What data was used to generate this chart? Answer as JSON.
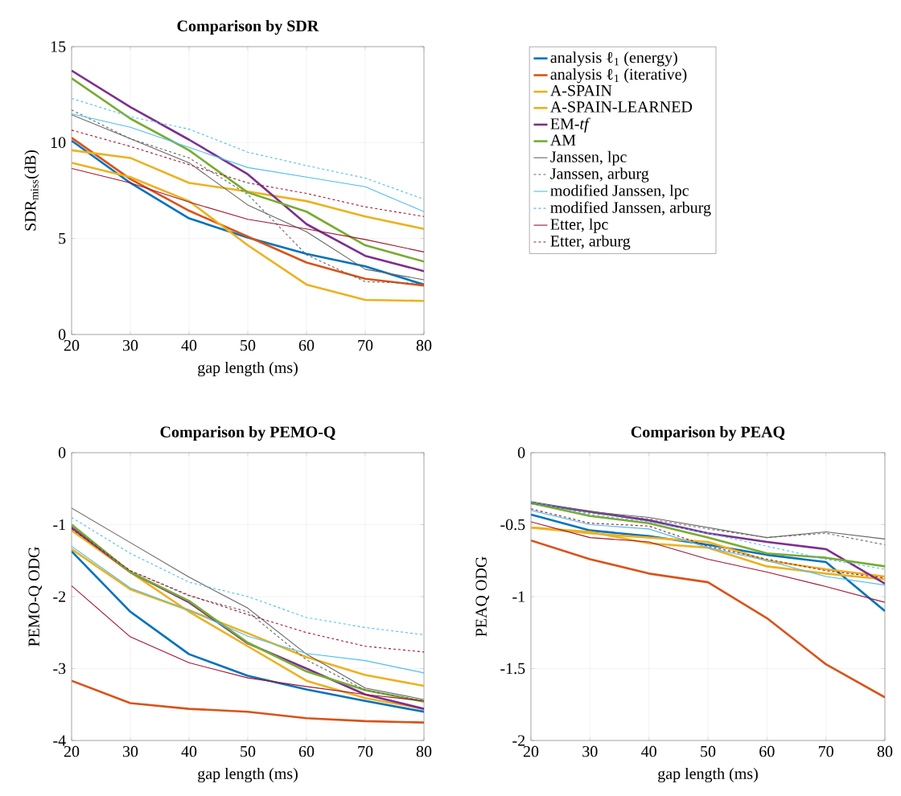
{
  "chart_data": [
    {
      "type": "line",
      "title": "**Comparison by SDR**",
      "xlabel": "gap length (ms)",
      "ylabel": "SDR$_{miss}$(dB)",
      "x": [
        20,
        30,
        40,
        50,
        60,
        70,
        80
      ],
      "xlim": [
        20,
        80
      ],
      "ylim": [
        0,
        15
      ],
      "xticks": [
        20,
        30,
        40,
        50,
        60,
        70,
        80
      ],
      "yticks": [
        0,
        5,
        10,
        15
      ],
      "grid": true,
      "legend": "right",
      "marker": "none",
      "series": [
        {
          "name": "analysis ℓ$_{1}$ (energy)",
          "color": "#0072bd",
          "line_style": "solid",
          "values": [
            10.1,
            7.9,
            6.05,
            5.05,
            4.2,
            3.55,
            2.6
          ]
        },
        {
          "name": "analysis ℓ$_{1}$ (iterative)",
          "color": "#d95319",
          "line_style": "solid",
          "values": [
            10.25,
            8.1,
            6.45,
            5.1,
            3.75,
            2.9,
            2.55
          ]
        },
        {
          "name": "A-SPAIN",
          "color": "#edb120",
          "line_style": "solid",
          "values": [
            8.95,
            8.2,
            6.95,
            4.65,
            2.6,
            1.8,
            1.75
          ]
        },
        {
          "name": "A-SPAIN-LEARNED",
          "color": "#edb120",
          "line_style": "solid",
          "values": [
            9.6,
            9.2,
            7.9,
            7.45,
            6.95,
            6.15,
            5.5
          ]
        },
        {
          "name": "EM-*tf*",
          "color": "#7e2f8e",
          "line_style": "solid",
          "values": [
            13.75,
            11.85,
            10.15,
            8.35,
            5.75,
            4.1,
            3.3
          ]
        },
        {
          "name": "AM",
          "color": "#77ac30",
          "line_style": "solid",
          "values": [
            13.35,
            11.25,
            9.6,
            7.4,
            6.4,
            4.65,
            3.8
          ]
        },
        {
          "name": "Janssen, lpc",
          "color": "#666666",
          "line_style": "solid",
          "values": [
            11.45,
            10.2,
            8.95,
            6.75,
            5.35,
            3.4,
            2.85
          ]
        },
        {
          "name": "Janssen, arburg",
          "color": "#666666",
          "line_style": "dashed",
          "values": [
            11.7,
            10.2,
            9.2,
            7.3,
            4.15,
            2.75,
            2.65
          ]
        },
        {
          "name": "modified Janssen, lpc",
          "color": "#4dbeee",
          "line_style": "solid",
          "values": [
            11.5,
            10.8,
            9.75,
            8.7,
            8.2,
            7.7,
            6.4
          ]
        },
        {
          "name": "modified Janssen, arburg",
          "color": "#4dbeee",
          "line_style": "dashed",
          "values": [
            12.3,
            11.35,
            10.7,
            9.5,
            8.8,
            8.15,
            7.05
          ]
        },
        {
          "name": "Etter, lpc",
          "color": "#a2142f",
          "line_style": "solid",
          "values": [
            8.65,
            7.9,
            6.9,
            6.0,
            5.5,
            4.95,
            4.3
          ]
        },
        {
          "name": "Etter, arburg",
          "color": "#a2142f",
          "line_style": "dashed",
          "values": [
            10.65,
            9.8,
            8.85,
            7.9,
            7.35,
            6.65,
            6.15
          ]
        }
      ]
    },
    {
      "type": "line",
      "title": "**Comparison by PEMO-Q**",
      "xlabel": "gap length (ms)",
      "ylabel": "PEMO-Q ODG",
      "x": [
        20,
        30,
        40,
        50,
        60,
        70,
        80
      ],
      "xlim": [
        20,
        80
      ],
      "ylim": [
        -4,
        0
      ],
      "xticks": [
        20,
        30,
        40,
        50,
        60,
        70,
        80
      ],
      "yticks": [
        -4,
        -3,
        -2,
        -1,
        0
      ],
      "grid": true,
      "marker": "none",
      "series": [
        {
          "color": "#0072bd",
          "line_style": "solid",
          "values": [
            -1.37,
            -2.21,
            -2.8,
            -3.1,
            -3.29,
            -3.45,
            -3.6
          ]
        },
        {
          "color": "#d95319",
          "line_style": "solid",
          "values": [
            -3.17,
            -3.48,
            -3.56,
            -3.6,
            -3.69,
            -3.73,
            -3.75
          ]
        },
        {
          "color": "#edb120",
          "line_style": "solid",
          "values": [
            -1.08,
            -1.66,
            -2.21,
            -2.69,
            -3.17,
            -3.41,
            -3.56
          ]
        },
        {
          "color": "#edb120",
          "line_style": "solid",
          "values": [
            -1.34,
            -1.9,
            -2.19,
            -2.51,
            -2.84,
            -3.09,
            -3.24
          ]
        },
        {
          "color": "#7e2f8e",
          "line_style": "solid",
          "values": [
            -1.04,
            -1.66,
            -2.08,
            -2.65,
            -3.0,
            -3.36,
            -3.56
          ]
        },
        {
          "color": "#77ac30",
          "line_style": "solid",
          "values": [
            -1.0,
            -1.66,
            -2.06,
            -2.64,
            -3.04,
            -3.3,
            -3.46
          ]
        },
        {
          "color": "#666666",
          "line_style": "solid",
          "values": [
            -0.77,
            -1.25,
            -1.73,
            -2.16,
            -2.8,
            -3.27,
            -3.43
          ]
        },
        {
          "color": "#666666",
          "line_style": "dashed",
          "values": [
            -1.03,
            -1.64,
            -1.99,
            -2.21,
            -2.88,
            -3.3,
            -3.45
          ]
        },
        {
          "color": "#4dbeee",
          "line_style": "solid",
          "values": [
            -1.3,
            -1.88,
            -2.19,
            -2.55,
            -2.79,
            -2.89,
            -3.06
          ]
        },
        {
          "color": "#4dbeee",
          "line_style": "dashed",
          "values": [
            -0.9,
            -1.4,
            -1.8,
            -2.0,
            -2.29,
            -2.43,
            -2.53
          ]
        },
        {
          "color": "#a2142f",
          "line_style": "solid",
          "values": [
            -1.85,
            -2.56,
            -2.92,
            -3.13,
            -3.25,
            -3.36,
            -3.45
          ]
        },
        {
          "color": "#a2142f",
          "line_style": "dashed",
          "values": [
            -1.06,
            -1.64,
            -1.98,
            -2.25,
            -2.5,
            -2.69,
            -2.77
          ]
        }
      ]
    },
    {
      "type": "line",
      "title": "**Comparison by PEAQ**",
      "xlabel": "gap length (ms)",
      "ylabel": "PEAQ ODG",
      "x": [
        20,
        30,
        40,
        50,
        60,
        70,
        80
      ],
      "xlim": [
        20,
        80
      ],
      "ylim": [
        -2,
        0
      ],
      "xticks": [
        20,
        30,
        40,
        50,
        60,
        70,
        80
      ],
      "yticks": [
        -2,
        -1.5,
        -1,
        -0.5,
        0
      ],
      "grid": true,
      "marker": "none",
      "series": [
        {
          "color": "#0072bd",
          "line_style": "solid",
          "values": [
            -0.43,
            -0.54,
            -0.58,
            -0.64,
            -0.71,
            -0.76,
            -1.1
          ]
        },
        {
          "color": "#d95319",
          "line_style": "solid",
          "values": [
            -0.61,
            -0.74,
            -0.84,
            -0.9,
            -1.15,
            -1.47,
            -1.7
          ]
        },
        {
          "color": "#edb120",
          "line_style": "solid",
          "values": [
            -0.52,
            -0.55,
            -0.63,
            -0.66,
            -0.79,
            -0.84,
            -0.88
          ]
        },
        {
          "color": "#edb120",
          "line_style": "solid",
          "values": [
            -0.52,
            -0.56,
            -0.59,
            -0.62,
            -0.75,
            -0.81,
            -0.86
          ]
        },
        {
          "color": "#7e2f8e",
          "line_style": "solid",
          "values": [
            -0.35,
            -0.41,
            -0.47,
            -0.56,
            -0.62,
            -0.67,
            -0.91
          ]
        },
        {
          "color": "#77ac30",
          "line_style": "solid",
          "values": [
            -0.35,
            -0.44,
            -0.49,
            -0.59,
            -0.7,
            -0.73,
            -0.79
          ]
        },
        {
          "color": "#666666",
          "line_style": "solid",
          "values": [
            -0.34,
            -0.41,
            -0.45,
            -0.52,
            -0.59,
            -0.55,
            -0.6
          ]
        },
        {
          "color": "#666666",
          "line_style": "dashed",
          "values": [
            -0.35,
            -0.42,
            -0.46,
            -0.53,
            -0.59,
            -0.56,
            -0.64
          ]
        },
        {
          "color": "#4dbeee",
          "line_style": "solid",
          "values": [
            -0.4,
            -0.5,
            -0.53,
            -0.66,
            -0.75,
            -0.86,
            -0.92
          ]
        },
        {
          "color": "#4dbeee",
          "line_style": "dashed",
          "values": [
            -0.34,
            -0.43,
            -0.48,
            -0.56,
            -0.65,
            -0.74,
            -0.81
          ]
        },
        {
          "color": "#a2142f",
          "line_style": "solid",
          "values": [
            -0.48,
            -0.59,
            -0.62,
            -0.74,
            -0.83,
            -0.93,
            -1.04
          ]
        },
        {
          "color": "#a2142f",
          "line_style": "dashed",
          "values": [
            -0.39,
            -0.49,
            -0.51,
            -0.65,
            -0.74,
            -0.82,
            -0.87
          ]
        }
      ]
    }
  ]
}
